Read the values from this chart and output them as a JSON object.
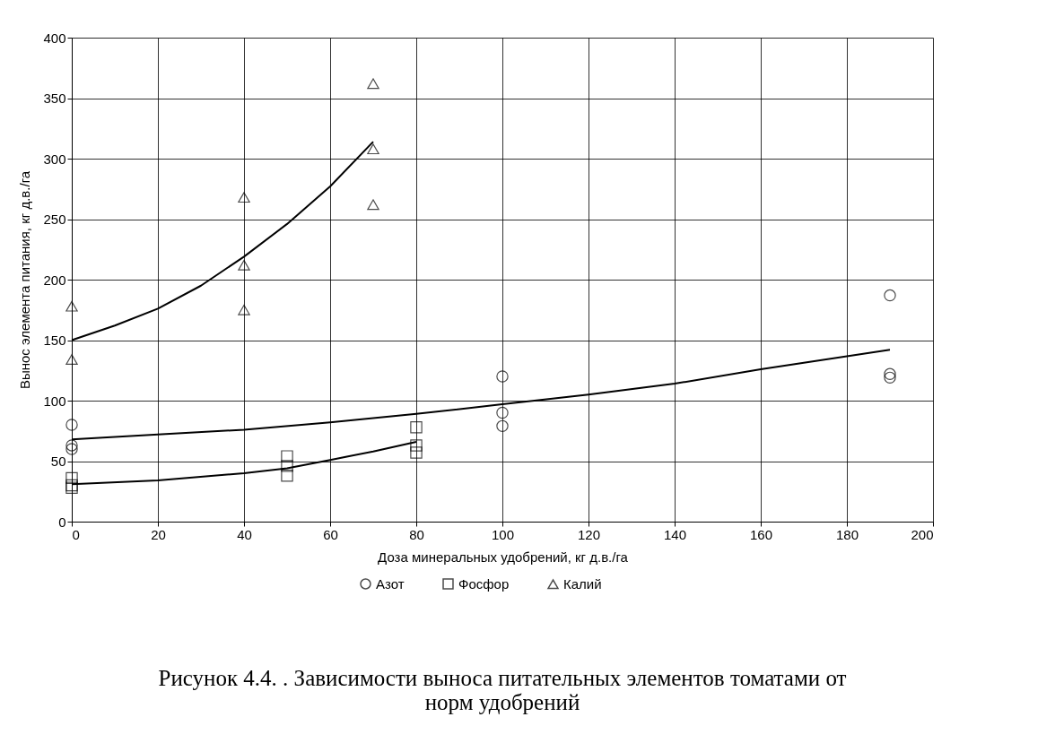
{
  "chart_data": {
    "type": "scatter",
    "title": "Рисунок 4.4. . Зависимости выноса питательных элементов томатами от норм удобрений",
    "xlabel": "Доза минеральных удобрений, кг д.в./га",
    "ylabel": "Вынос элемента питания, кг д.в./га",
    "xlim": [
      0,
      200
    ],
    "xticks": [
      0,
      20,
      40,
      60,
      80,
      100,
      120,
      140,
      160,
      180,
      200
    ],
    "ylim": [
      0,
      400
    ],
    "yticks": [
      0,
      50,
      100,
      150,
      200,
      250,
      300,
      350,
      400
    ],
    "grid": true,
    "legend": "bottom",
    "series": [
      {
        "name": "Азот",
        "marker": "circle",
        "color": "#000000",
        "x": [
          0,
          0,
          0,
          100,
          100,
          100,
          190,
          190,
          190
        ],
        "values": [
          80,
          63,
          60,
          120,
          90,
          79,
          187,
          122,
          119
        ]
      },
      {
        "name": "Фосфор",
        "marker": "square",
        "color": "#000000",
        "x": [
          0,
          0,
          0,
          50,
          50,
          50,
          80,
          80,
          80
        ],
        "values": [
          36,
          30,
          28,
          54,
          46,
          38,
          78,
          63,
          57
        ]
      },
      {
        "name": "Калий",
        "marker": "triangle",
        "color": "#000000",
        "x": [
          0,
          0,
          40,
          40,
          40,
          70,
          70,
          70
        ],
        "values": [
          178,
          134,
          268,
          212,
          175,
          362,
          308,
          262
        ]
      },
      {
        "type": "line",
        "color": "#000000",
        "x": [
          0,
          20,
          40,
          60,
          80,
          100,
          120,
          140,
          160,
          190
        ],
        "values": [
          68,
          72,
          76,
          82,
          89,
          97,
          105,
          114,
          126,
          142
        ]
      },
      {
        "type": "line",
        "color": "#000000",
        "x": [
          0,
          20,
          40,
          50,
          60,
          70,
          80
        ],
        "values": [
          31,
          34,
          40,
          44,
          51,
          58,
          66
        ]
      },
      {
        "type": "line",
        "color": "#000000",
        "x": [
          0,
          10,
          20,
          30,
          40,
          50,
          60,
          70
        ],
        "values": [
          150,
          162,
          176,
          195,
          219,
          246,
          277,
          314
        ]
      }
    ]
  }
}
